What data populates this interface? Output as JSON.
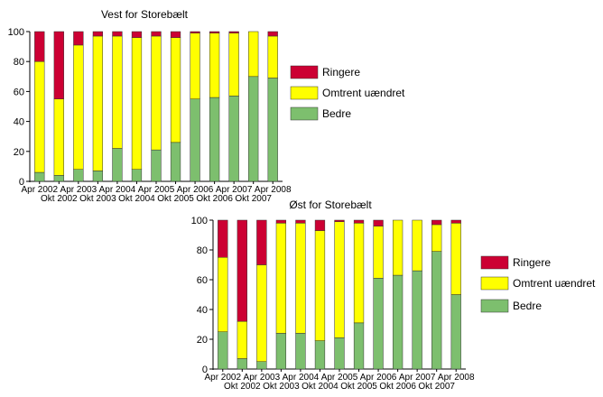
{
  "chart_data": [
    {
      "type": "bar",
      "stacked": true,
      "title": "Vest for Storebælt",
      "categories": [
        "Apr 2002",
        "Okt 2002",
        "Apr 2003",
        "Okt 2003",
        "Apr 2004",
        "Okt 2004",
        "Apr 2005",
        "Okt 2005",
        "Apr 2006",
        "Okt 2006",
        "Apr 2007",
        "Okt 2007",
        "Apr 2008"
      ],
      "ylim": [
        0,
        100
      ],
      "yticks": [
        0,
        20,
        40,
        60,
        80,
        100
      ],
      "legend_position": "right",
      "series": [
        {
          "name": "Bedre",
          "color": "#7dbf6e",
          "values": [
            6,
            4,
            8,
            7,
            22,
            8,
            21,
            26,
            55,
            56,
            57,
            70,
            69
          ]
        },
        {
          "name": "Omtrent uændret",
          "color": "#ffff00",
          "values": [
            74,
            51,
            83,
            90,
            75,
            88,
            76,
            70,
            44,
            43,
            42,
            30,
            28
          ]
        },
        {
          "name": "Ringere",
          "color": "#cc0033",
          "values": [
            20,
            45,
            9,
            3,
            3,
            4,
            3,
            4,
            1,
            1,
            1,
            0,
            3
          ]
        }
      ]
    },
    {
      "type": "bar",
      "stacked": true,
      "title": "Øst for Storebælt",
      "categories": [
        "Apr 2002",
        "Okt 2002",
        "Apr 2003",
        "Okt 2003",
        "Apr 2004",
        "Okt 2004",
        "Apr 2005",
        "Okt 2005",
        "Apr 2006",
        "Okt 2006",
        "Apr 2007",
        "Okt 2007",
        "Apr 2008"
      ],
      "ylim": [
        0,
        100
      ],
      "yticks": [
        0,
        20,
        40,
        60,
        80,
        100
      ],
      "legend_position": "right",
      "series": [
        {
          "name": "Bedre",
          "color": "#7dbf6e",
          "values": [
            25,
            7,
            5,
            24,
            24,
            19,
            21,
            31,
            61,
            63,
            66,
            79,
            50
          ]
        },
        {
          "name": "Omtrent uændret",
          "color": "#ffff00",
          "values": [
            50,
            25,
            65,
            74,
            74,
            74,
            78,
            67,
            35,
            37,
            34,
            18,
            48
          ]
        },
        {
          "name": "Ringere",
          "color": "#cc0033",
          "values": [
            25,
            68,
            30,
            2,
            2,
            7,
            1,
            2,
            4,
            0,
            0,
            3,
            2
          ]
        }
      ]
    }
  ]
}
